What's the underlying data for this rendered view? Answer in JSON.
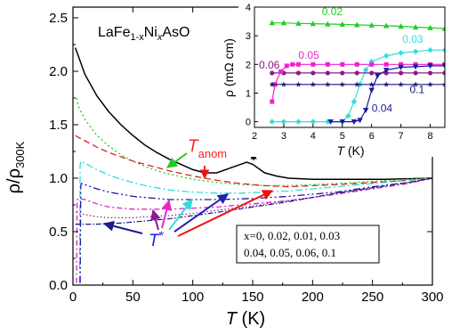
{
  "chart_data": [
    {
      "type": "line",
      "compound": "LaFe",
      "compound_sub1": "1-x",
      "compound_mid": "Ni",
      "compound_sub2": "x",
      "compound_end": "AsO",
      "xlabel_var": "T",
      "xlabel_unit": "(K)",
      "ylabel_main": "ρ/ρ",
      "ylabel_sub": "300K",
      "xlim": [
        0,
        300
      ],
      "ylim": [
        0,
        2.6
      ],
      "xticks": [
        0,
        50,
        100,
        150,
        200,
        250,
        300
      ],
      "yticks": [
        0.0,
        0.5,
        1.0,
        1.5,
        2.0,
        2.5
      ],
      "ytick_labels": [
        "0.0",
        "0.5",
        "1.0",
        "1.5",
        "2.0",
        "2.5"
      ],
      "annotations": {
        "t_anom": "T",
        "t_anom_sub": "anom",
        "t_star": "T",
        "t_star_sup": "*",
        "legend_line1": "x=0, 0.02, 0.01, 0.03",
        "legend_line2": "0.04, 0.05, 0.06, 0.1"
      },
      "colors": {
        "x0": "#000000",
        "x002": "#22cc22",
        "x001": "#dd2222",
        "x003": "#33dddd",
        "x004": "#1a1aa0",
        "x005": "#dd22cc",
        "x006": "#8a1a8a",
        "x01": "#1a1a80",
        "anom_label": "#ff2020",
        "tstar_label": "#2020dd"
      },
      "series": [
        {
          "x": [
            2,
            10,
            20,
            30,
            40,
            50,
            60,
            70,
            80,
            90,
            100,
            110,
            120,
            130,
            140,
            145,
            150,
            160,
            170,
            180,
            200,
            220,
            240,
            260,
            280,
            300
          ],
          "values": [
            2.22,
            1.97,
            1.77,
            1.62,
            1.5,
            1.4,
            1.31,
            1.24,
            1.18,
            1.13,
            1.08,
            1.05,
            1.05,
            1.09,
            1.13,
            1.15,
            1.13,
            1.05,
            1.02,
            1.0,
            0.99,
            0.99,
            0.99,
            0.99,
            0.995,
            1.0
          ]
        },
        {
          "x": [
            3,
            5,
            10,
            20,
            30,
            40,
            50,
            60,
            70,
            80,
            100,
            120,
            140,
            160,
            180,
            200,
            220,
            250,
            280,
            300
          ],
          "values": [
            1.75,
            1.66,
            1.55,
            1.4,
            1.3,
            1.22,
            1.16,
            1.11,
            1.07,
            1.04,
            0.99,
            0.96,
            0.94,
            0.93,
            0.93,
            0.94,
            0.95,
            0.97,
            0.99,
            1.0
          ]
        },
        {
          "x": [
            2,
            5,
            10,
            20,
            30,
            40,
            50,
            60,
            80,
            100,
            120,
            140,
            160,
            180,
            200,
            220,
            250,
            280,
            300
          ],
          "values": [
            1.4,
            1.38,
            1.35,
            1.29,
            1.24,
            1.2,
            1.16,
            1.13,
            1.07,
            1.02,
            0.98,
            0.95,
            0.93,
            0.92,
            0.93,
            0.94,
            0.96,
            0.98,
            1.0
          ]
        },
        {
          "x": [
            5.5,
            6,
            7,
            10,
            15,
            20,
            30,
            40,
            50,
            60,
            80,
            100,
            120,
            140,
            160,
            180,
            200,
            220,
            250,
            280,
            300
          ],
          "values": [
            0.02,
            1.13,
            1.16,
            1.14,
            1.11,
            1.08,
            1.03,
            0.99,
            0.96,
            0.93,
            0.89,
            0.87,
            0.86,
            0.86,
            0.87,
            0.88,
            0.9,
            0.92,
            0.95,
            0.98,
            1.0
          ]
        },
        {
          "x": [
            6,
            6.5,
            7,
            10,
            20,
            30,
            40,
            50,
            60,
            80,
            100,
            120,
            150,
            180,
            200,
            220,
            250,
            280,
            300
          ],
          "values": [
            0.02,
            0.93,
            0.95,
            0.94,
            0.9,
            0.87,
            0.85,
            0.83,
            0.82,
            0.8,
            0.8,
            0.8,
            0.81,
            0.83,
            0.85,
            0.87,
            0.92,
            0.96,
            1.0
          ]
        },
        {
          "x": [
            3,
            3.5,
            5,
            10,
            20,
            30,
            40,
            50,
            60,
            80,
            100,
            120,
            150,
            180,
            200,
            220,
            250,
            280,
            300
          ],
          "values": [
            0.02,
            0.8,
            0.81,
            0.8,
            0.76,
            0.73,
            0.72,
            0.71,
            0.71,
            0.71,
            0.72,
            0.73,
            0.76,
            0.79,
            0.82,
            0.85,
            0.9,
            0.95,
            1.0
          ]
        },
        {
          "x": [
            2.5,
            3,
            5,
            10,
            20,
            30,
            40,
            50,
            60,
            80,
            100,
            120,
            150,
            180,
            200,
            220,
            250,
            280,
            300
          ],
          "values": [
            0.68,
            0.68,
            0.67,
            0.66,
            0.64,
            0.63,
            0.63,
            0.63,
            0.64,
            0.65,
            0.67,
            0.7,
            0.74,
            0.79,
            0.82,
            0.86,
            0.91,
            0.96,
            1.0
          ]
        },
        {
          "x": [
            2,
            5,
            10,
            20,
            40,
            60,
            80,
            100,
            120,
            150,
            180,
            200,
            220,
            250,
            280,
            300
          ],
          "values": [
            0.57,
            0.57,
            0.57,
            0.57,
            0.58,
            0.6,
            0.62,
            0.65,
            0.68,
            0.73,
            0.78,
            0.82,
            0.86,
            0.91,
            0.96,
            1.0
          ]
        }
      ]
    },
    {
      "type": "line",
      "ylabel_main": "ρ",
      "ylabel_unit": "(mΩ cm)",
      "xlabel_var": "T",
      "xlabel_unit": "(K)",
      "xlim": [
        2,
        8.5
      ],
      "ylim": [
        -0.2,
        4
      ],
      "xticks": [
        2,
        3,
        4,
        5,
        6,
        7,
        8
      ],
      "yticks": [
        0,
        1,
        2,
        3,
        4
      ],
      "series": [
        {
          "name": "0.02",
          "x": [
            2.6,
            3,
            3.5,
            4,
            4.5,
            5,
            5.5,
            6,
            6.5,
            7,
            7.5,
            8,
            8.5
          ],
          "values": [
            3.45,
            3.45,
            3.43,
            3.42,
            3.41,
            3.4,
            3.38,
            3.37,
            3.35,
            3.33,
            3.3,
            3.28,
            3.25
          ]
        },
        {
          "name": "0.03",
          "x": [
            2.6,
            3,
            3.5,
            4,
            4.5,
            5,
            5.2,
            5.4,
            5.6,
            5.8,
            6,
            6.5,
            7,
            7.5,
            8,
            8.5
          ],
          "values": [
            0.0,
            0.0,
            0.0,
            0.0,
            0.0,
            0.0,
            0.2,
            0.7,
            1.3,
            1.8,
            2.1,
            2.3,
            2.4,
            2.45,
            2.5,
            2.5
          ]
        },
        {
          "name": "0.06",
          "x": [
            2.6,
            3,
            3.5,
            4,
            4.5,
            5,
            5.5,
            6,
            6.5,
            7,
            7.5,
            8,
            8.5
          ],
          "values": [
            1.7,
            1.7,
            1.7,
            1.7,
            1.7,
            1.7,
            1.7,
            1.7,
            1.7,
            1.7,
            1.7,
            1.7,
            1.7
          ]
        },
        {
          "name": "0.05",
          "x": [
            2.6,
            2.7,
            2.9,
            3.1,
            3.3,
            3.5,
            4,
            4.5,
            5,
            5.5,
            6,
            6.5,
            7,
            7.5,
            8,
            8.5
          ],
          "values": [
            0.7,
            1.3,
            1.75,
            1.95,
            2.0,
            2.0,
            2.0,
            2.0,
            2.0,
            2.0,
            2.0,
            2.0,
            2.0,
            2.0,
            2.0,
            2.0
          ]
        },
        {
          "name": "0.1",
          "x": [
            2.6,
            3,
            3.5,
            4,
            4.5,
            5,
            5.5,
            6,
            6.5,
            7,
            7.5,
            8,
            8.5
          ],
          "values": [
            1.3,
            1.3,
            1.3,
            1.3,
            1.3,
            1.3,
            1.3,
            1.3,
            1.3,
            1.3,
            1.3,
            1.3,
            1.3
          ]
        },
        {
          "name": "0.04",
          "x": [
            4.6,
            5,
            5.4,
            5.6,
            5.8,
            6,
            6.2,
            6.5,
            7,
            7.5,
            8,
            8.5
          ],
          "values": [
            0.0,
            0.0,
            0.0,
            0.05,
            0.4,
            1.1,
            1.6,
            1.8,
            1.9,
            1.92,
            1.95,
            1.95
          ]
        }
      ]
    }
  ]
}
